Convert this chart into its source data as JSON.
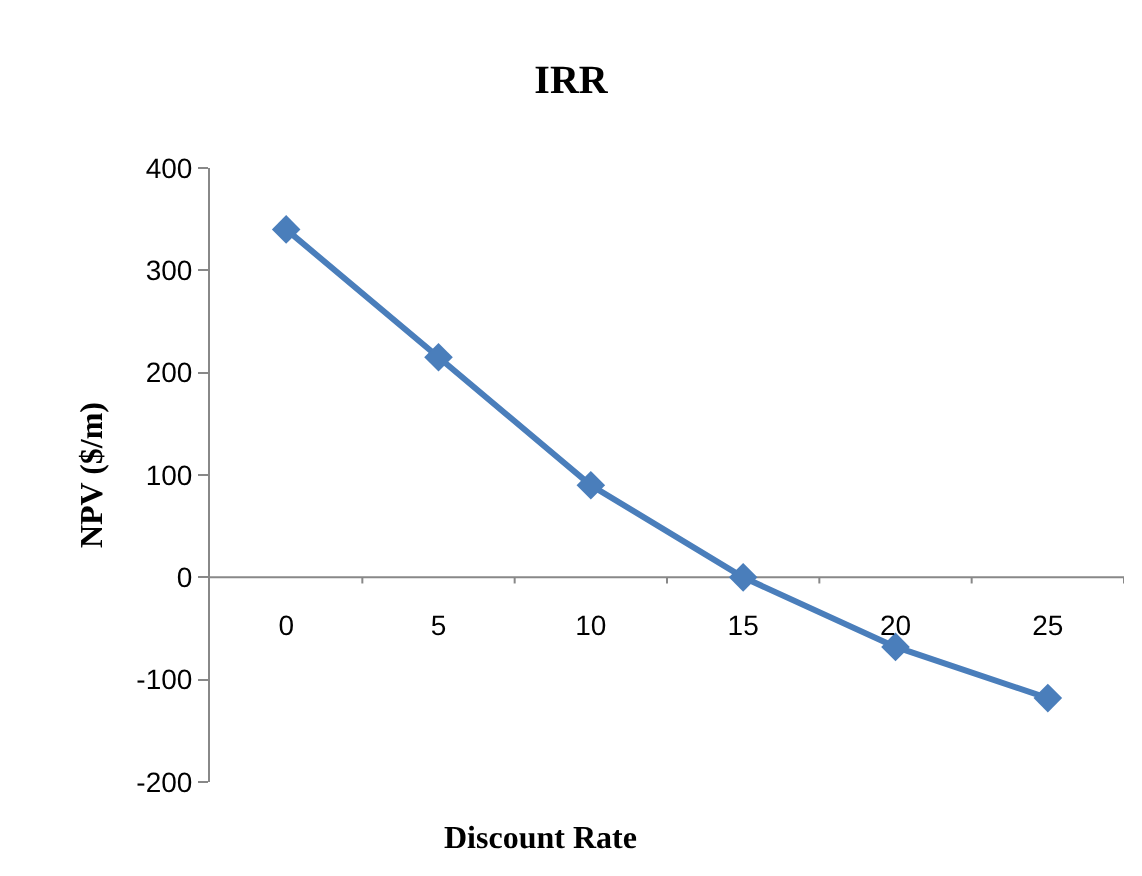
{
  "chart_data": {
    "type": "line",
    "title": "IRR",
    "xlabel": "Discount Rate",
    "ylabel": "NPV ($/m)",
    "categories": [
      "0",
      "5",
      "10",
      "15",
      "20",
      "25"
    ],
    "series": [
      {
        "color": "#4a7ebb",
        "values": [
          340,
          215,
          90,
          0,
          -68,
          -118
        ]
      }
    ],
    "ylim": [
      -200,
      400
    ],
    "yticks": [
      -200,
      -100,
      0,
      100,
      200,
      300,
      400
    ],
    "grid": false,
    "marker": "diamond",
    "line_style": "solid"
  }
}
